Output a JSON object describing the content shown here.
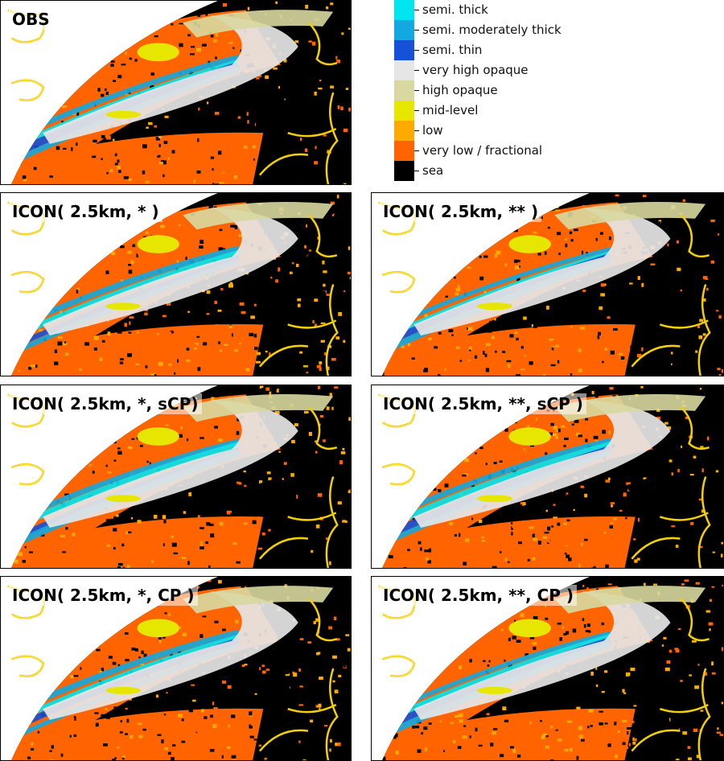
{
  "panels": [
    {
      "title": "OBS",
      "seed": 11
    },
    {
      "title": "ICON( 2.5km, * )",
      "seed": 23
    },
    {
      "title": "ICON( 2.5km, ** )",
      "seed": 37
    },
    {
      "title": "ICON( 2.5km, *, sCP)",
      "seed": 41
    },
    {
      "title": "ICON( 2.5km, **, sCP )",
      "seed": 53
    },
    {
      "title": "ICON( 2.5km, *, CP )",
      "seed": 67
    },
    {
      "title": "ICON( 2.5km, **, CP )",
      "seed": 79
    }
  ],
  "legend": [
    {
      "label": "semi. thick",
      "color": "#00e5ef"
    },
    {
      "label": "semi. moderately thick",
      "color": "#12a8e0"
    },
    {
      "label": "semi. thin",
      "color": "#1450d8"
    },
    {
      "label": "very high opaque",
      "color": "#e6e6e6"
    },
    {
      "label": "high opaque",
      "color": "#d8d8a0"
    },
    {
      "label": "mid-level",
      "color": "#e6e600"
    },
    {
      "label": "low",
      "color": "#ffaa00"
    },
    {
      "label": "very low / fractional",
      "color": "#ff6400"
    },
    {
      "label": "sea",
      "color": "#000000"
    }
  ],
  "coast_color": "#f5d000"
}
